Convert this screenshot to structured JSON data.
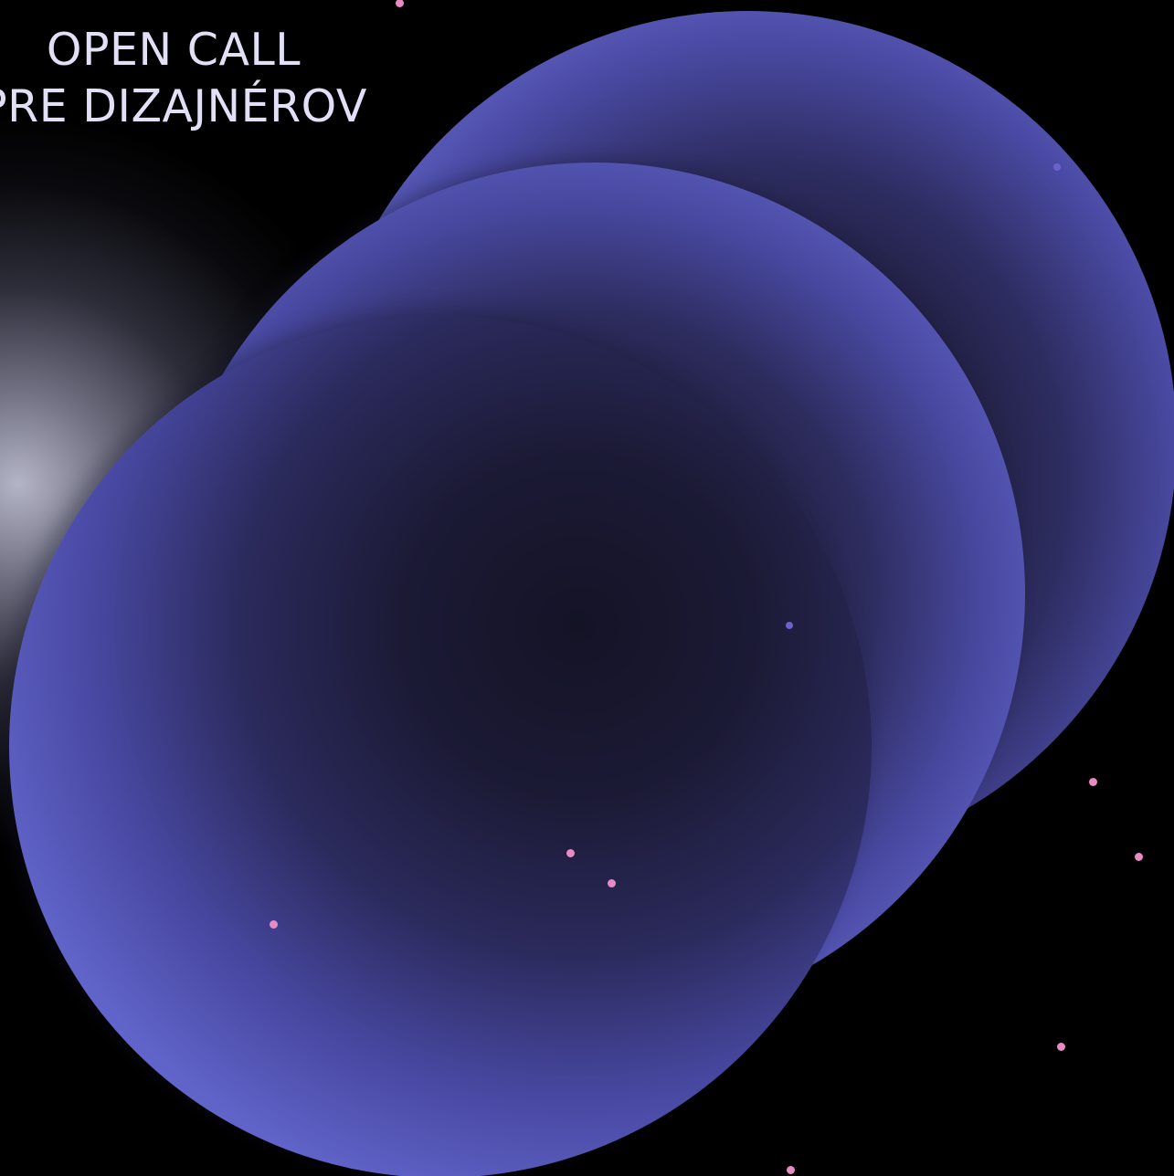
{
  "poster": {
    "headline_line1": "OPEN CALL",
    "headline_line2": "PRE DIZAJNÉROV",
    "colors": {
      "background": "#000000",
      "text": "#e2e0f6",
      "orb_edge": "#6366c8",
      "orb_core": "#161426",
      "accent_dot": "#e88bc4"
    }
  }
}
